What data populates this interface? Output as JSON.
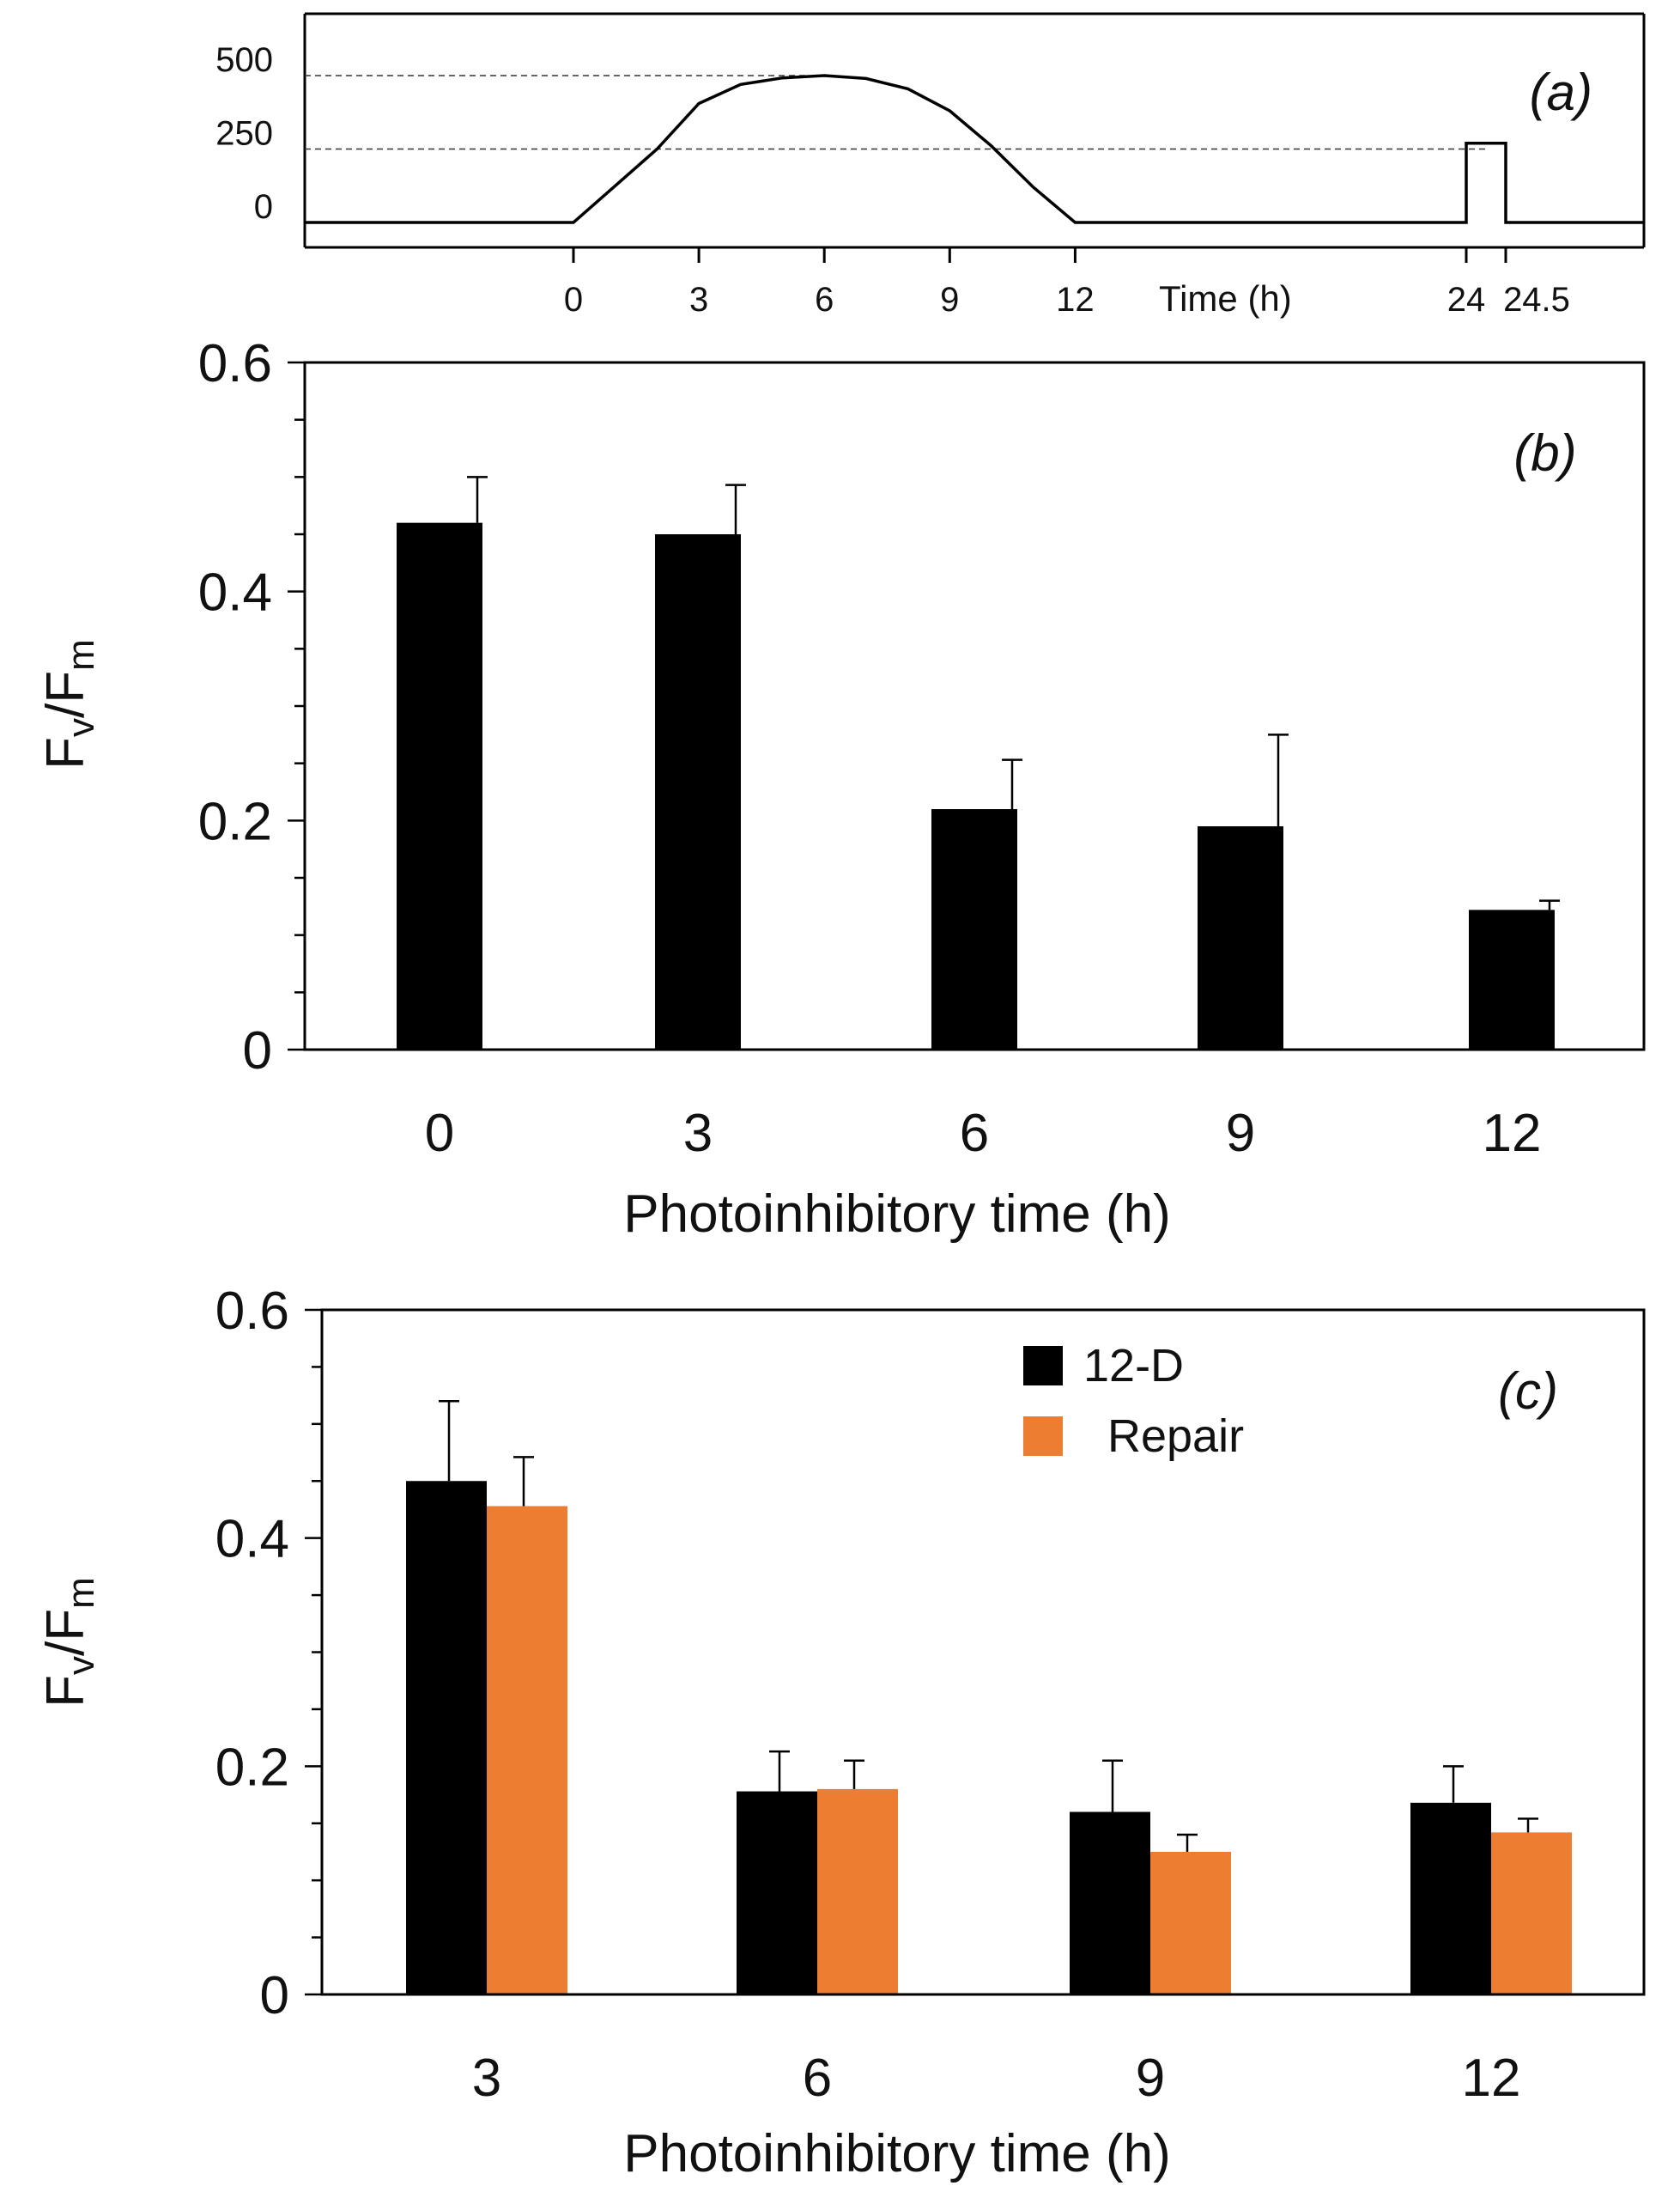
{
  "chart_data": [
    {
      "id": "a",
      "type": "line",
      "panel_label": "(a)",
      "xlabel": "Time (h)",
      "ylabel": "",
      "x_ticks": [
        "0",
        "3",
        "6",
        "9",
        "12",
        "24",
        "24.5"
      ],
      "y_ticks": [
        "500",
        "250",
        "0"
      ],
      "ylim": [
        0,
        560
      ],
      "reference_lines_y": [
        500,
        250
      ],
      "series": [
        {
          "x": [
            -9,
            0,
            1,
            2,
            3,
            4,
            5,
            6,
            7,
            8,
            9,
            10,
            11,
            12,
            24,
            24,
            24.5,
            24.5,
            29
          ],
          "y": [
            0,
            0,
            125,
            250,
            405,
            470,
            492,
            500,
            490,
            455,
            380,
            260,
            120,
            0,
            0,
            270,
            270,
            0,
            0
          ]
        }
      ]
    },
    {
      "id": "b",
      "type": "bar",
      "panel_label": "(b)",
      "categories": [
        "0",
        "3",
        "6",
        "9",
        "12"
      ],
      "values": [
        0.46,
        0.45,
        0.21,
        0.195,
        0.122
      ],
      "errors": [
        0.04,
        0.043,
        0.043,
        0.08,
        0.008
      ],
      "xlabel": "Photoinhibitory time (h)",
      "ylabel_main": "F",
      "ylabel_sub1": "v",
      "ylabel_mid": "/F",
      "ylabel_sub2": "m",
      "y_ticks": [
        "0.6",
        "0.4",
        "0.2",
        "0"
      ],
      "ylim": [
        0,
        0.6
      ],
      "bar_color": "#000000"
    },
    {
      "id": "c",
      "type": "bar",
      "panel_label": "(c)",
      "categories": [
        "3",
        "6",
        "9",
        "12"
      ],
      "series": [
        {
          "name": "12-D",
          "values": [
            0.45,
            0.178,
            0.16,
            0.168
          ],
          "errors": [
            0.07,
            0.035,
            0.045,
            0.032
          ],
          "color": "#000000"
        },
        {
          "name": "Repair",
          "values": [
            0.428,
            0.18,
            0.125,
            0.142
          ],
          "errors": [
            0.043,
            0.025,
            0.015,
            0.012
          ],
          "color": "#ed7d31"
        }
      ],
      "xlabel": "Photoinhibitory time (h)",
      "ylabel_main": "F",
      "ylabel_sub1": "v",
      "ylabel_mid": "/F",
      "ylabel_sub2": "m",
      "y_ticks": [
        "0.6",
        "0.4",
        "0.2",
        "0"
      ],
      "ylim": [
        0,
        0.6
      ],
      "legend_position": "top-right"
    }
  ]
}
